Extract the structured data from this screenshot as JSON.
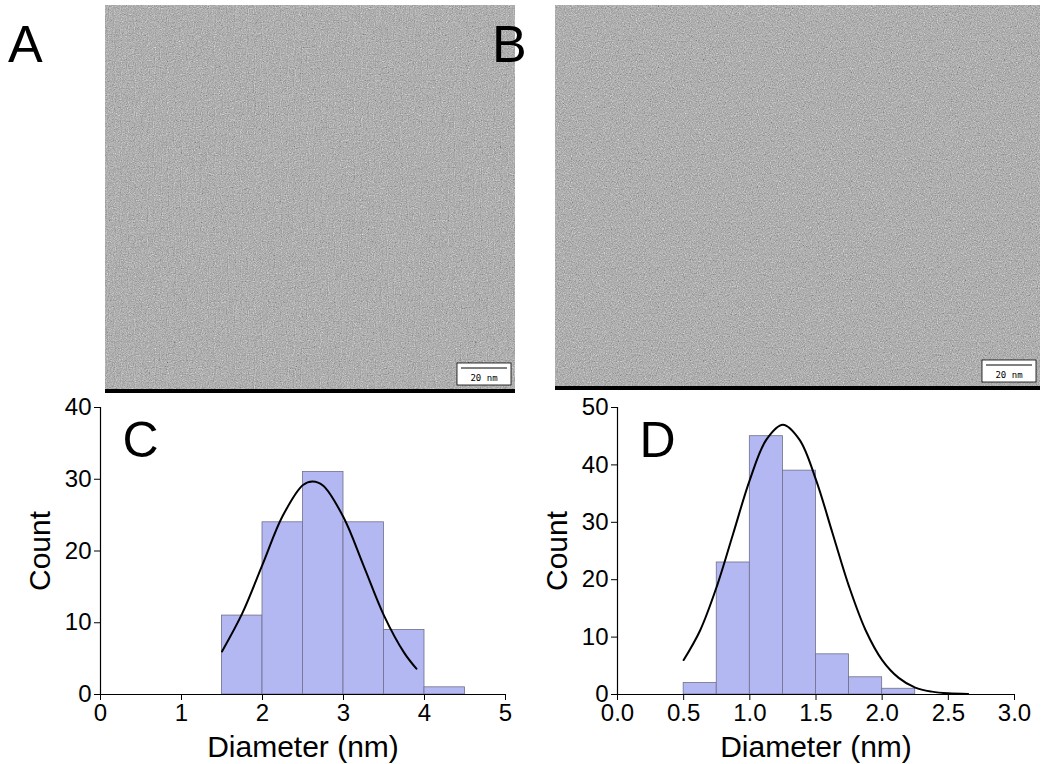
{
  "images": [
    {
      "panel": "A",
      "scale_bar": "20 nm"
    },
    {
      "panel": "B",
      "scale_bar": "20 nm"
    }
  ],
  "chart_data": [
    {
      "type": "histogram",
      "panel": "C",
      "bins": [
        1.5,
        2.0,
        2.5,
        3.0,
        3.5,
        4.0,
        4.5
      ],
      "counts": [
        11,
        24,
        31,
        24,
        9,
        1
      ],
      "color": "#b3b8f2",
      "fit": {
        "type": "line",
        "color": "#000000",
        "x": [
          1.5,
          1.75,
          2.0,
          2.25,
          2.5,
          2.62,
          2.75,
          3.0,
          3.25,
          3.5,
          3.75,
          3.9
        ],
        "values": [
          6.0,
          11.3,
          18.1,
          24.9,
          29.2,
          29.7,
          29.1,
          24.7,
          17.9,
          11.0,
          5.8,
          3.6
        ]
      },
      "x_label": "Diameter (nm)",
      "y_label": "Count",
      "xlim": [
        0,
        5
      ],
      "xticks": [
        0,
        1,
        2,
        3,
        4,
        5
      ],
      "ylim": [
        0,
        40
      ],
      "yticks": [
        0,
        10,
        20,
        30,
        40
      ],
      "grid": false
    },
    {
      "type": "histogram",
      "panel": "D",
      "bins": [
        0.5,
        0.75,
        1.0,
        1.25,
        1.5,
        1.75,
        2.0,
        2.25
      ],
      "counts": [
        2,
        23,
        45,
        39,
        7,
        3,
        1
      ],
      "color": "#b3b8f2",
      "fit": {
        "type": "line",
        "color": "#000000",
        "x": [
          0.5,
          0.625,
          0.75,
          0.875,
          1.0,
          1.125,
          1.25,
          1.375,
          1.5,
          1.625,
          1.75,
          1.875,
          2.0,
          2.125,
          2.25,
          2.375,
          2.5,
          2.65
        ],
        "values": [
          6.0,
          11.2,
          18.8,
          28.1,
          37.4,
          44.4,
          47.0,
          44.4,
          37.4,
          28.1,
          18.8,
          11.2,
          6.0,
          2.9,
          1.2,
          0.5,
          0.2,
          0.1
        ]
      },
      "x_label": "Diameter (nm)",
      "y_label": "Count",
      "xlim": [
        0,
        3
      ],
      "xticks": [
        {
          "value": 0,
          "label": "0.0"
        },
        0.5,
        {
          "value": 1,
          "label": "1.0"
        },
        1.5,
        {
          "value": 2,
          "label": "2.0"
        },
        2.5,
        {
          "value": 3,
          "label": "3.0"
        }
      ],
      "ylim": [
        0,
        50
      ],
      "yticks": [
        0,
        10,
        20,
        30,
        40,
        50
      ],
      "grid": false
    }
  ]
}
